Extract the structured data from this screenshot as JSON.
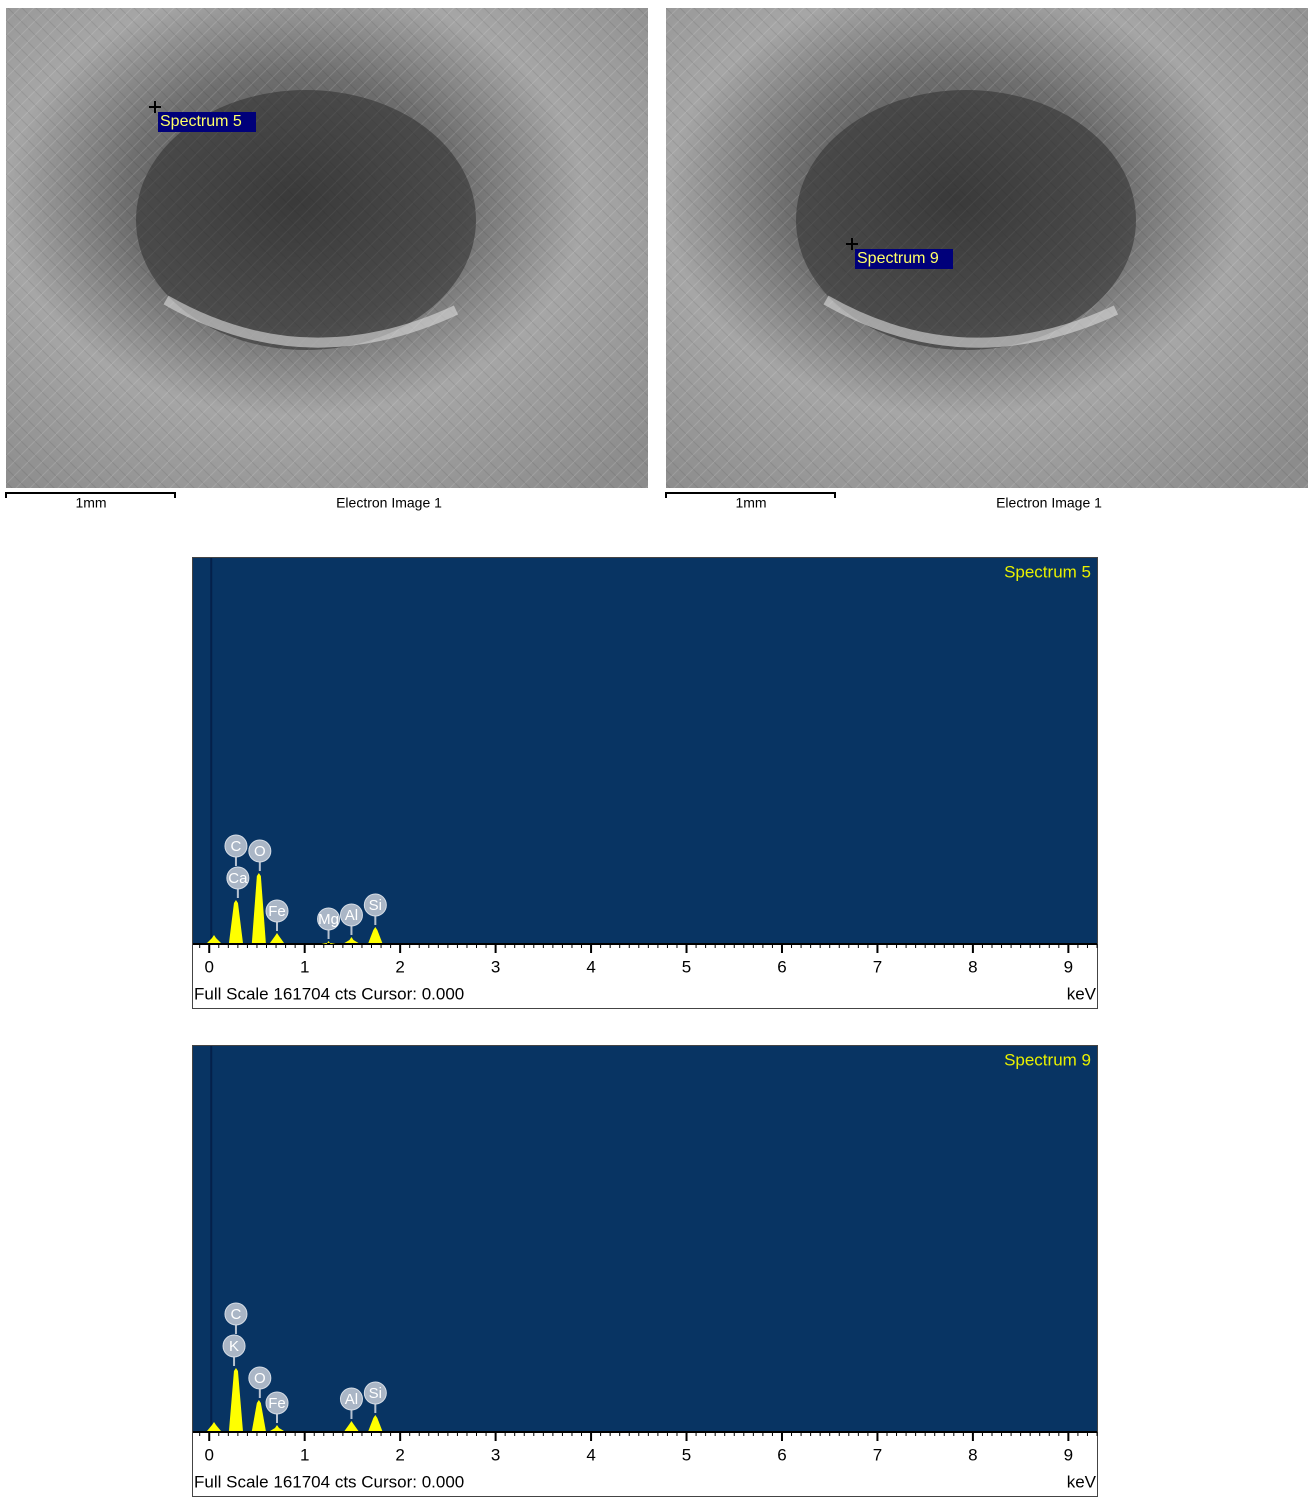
{
  "images": [
    {
      "marker_label": "Spectrum 5",
      "scale_label": "1mm",
      "caption": "Electron Image 1"
    },
    {
      "marker_label": "Spectrum 9",
      "scale_label": "1mm",
      "caption": "Electron Image 1"
    }
  ],
  "chart_data": [
    {
      "type": "spectrum",
      "title": "Spectrum 5",
      "x_label": "keV",
      "footer": "Full Scale 161704 cts Cursor: 0.000",
      "x": [
        0.05,
        0.28,
        0.52,
        0.71,
        1.25,
        1.49,
        1.74
      ],
      "values": [
        3360,
        18060,
        29400,
        4200,
        840,
        2520,
        6720
      ],
      "color": "#ffff00",
      "elements": [
        {
          "label": "Ca",
          "energy": 0.3
        },
        {
          "label": "C",
          "energy": 0.28
        },
        {
          "label": "O",
          "energy": 0.53
        },
        {
          "label": "Fe",
          "energy": 0.71
        },
        {
          "label": "Mg",
          "energy": 1.25
        },
        {
          "label": "Al",
          "energy": 1.49
        },
        {
          "label": "Si",
          "energy": 1.74
        }
      ],
      "xlim": [
        -0.17,
        9.3
      ],
      "ylim": [
        0,
        161704
      ],
      "xticks": [
        0,
        1,
        2,
        3,
        4,
        5,
        6,
        7,
        8,
        9
      ],
      "minor_tick_interval": 0.1
    },
    {
      "type": "spectrum",
      "title": "Spectrum 9",
      "x_label": "keV",
      "footer": "Full Scale 161704 cts Cursor: 0.000",
      "x": [
        0.05,
        0.28,
        0.52,
        0.71,
        1.49,
        1.74
      ],
      "values": [
        3780,
        26460,
        13020,
        2520,
        4200,
        6720
      ],
      "color": "#ffff00",
      "elements": [
        {
          "label": "K",
          "energy": 0.26
        },
        {
          "label": "C",
          "energy": 0.28
        },
        {
          "label": "O",
          "energy": 0.53
        },
        {
          "label": "Fe",
          "energy": 0.71
        },
        {
          "label": "Al",
          "energy": 1.49
        },
        {
          "label": "Si",
          "energy": 1.74
        }
      ],
      "xlim": [
        -0.17,
        9.3
      ],
      "ylim": [
        0,
        161704
      ],
      "xticks": [
        0,
        1,
        2,
        3,
        4,
        5,
        6,
        7,
        8,
        9
      ],
      "minor_tick_interval": 0.1
    }
  ]
}
